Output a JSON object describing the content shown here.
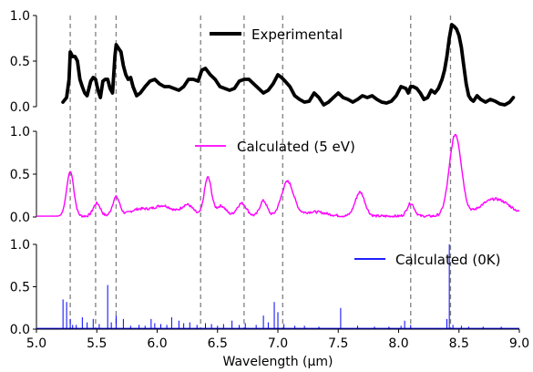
{
  "xaxis": {
    "label": "Wavelength (μm)",
    "ticks": [
      "5.0",
      "5.5",
      "6.0",
      "6.5",
      "7.0",
      "7.5",
      "8.0",
      "8.5",
      "9.0"
    ],
    "range": [
      5.0,
      9.0
    ]
  },
  "colors": {
    "experimental": "#000000",
    "calc5ev": "#ff00ff",
    "calc0k": "#0000ff",
    "vlines": "#808080"
  },
  "chart_data": [
    {
      "type": "line",
      "panel": "top",
      "ylim": [
        0,
        1.0
      ],
      "yticks": [
        "0.0",
        "0.5",
        "1.0"
      ],
      "series": [
        {
          "name": "Experimental",
          "x": [
            5.22,
            5.25,
            5.27,
            5.28,
            5.3,
            5.32,
            5.34,
            5.36,
            5.38,
            5.4,
            5.42,
            5.45,
            5.47,
            5.49,
            5.51,
            5.53,
            5.55,
            5.57,
            5.59,
            5.61,
            5.63,
            5.65,
            5.66,
            5.68,
            5.7,
            5.72,
            5.74,
            5.76,
            5.78,
            5.8,
            5.83,
            5.86,
            5.9,
            5.94,
            5.98,
            6.02,
            6.06,
            6.1,
            6.14,
            6.18,
            6.22,
            6.26,
            6.3,
            6.34,
            6.37,
            6.4,
            6.44,
            6.48,
            6.52,
            6.56,
            6.6,
            6.64,
            6.68,
            6.72,
            6.76,
            6.8,
            6.84,
            6.88,
            6.92,
            6.96,
            7.0,
            7.03,
            7.06,
            7.1,
            7.14,
            7.18,
            7.22,
            7.26,
            7.3,
            7.34,
            7.38,
            7.42,
            7.46,
            7.5,
            7.54,
            7.58,
            7.62,
            7.66,
            7.7,
            7.74,
            7.78,
            7.82,
            7.86,
            7.9,
            7.94,
            7.98,
            8.02,
            8.06,
            8.08,
            8.1,
            8.12,
            8.15,
            8.18,
            8.21,
            8.24,
            8.27,
            8.3,
            8.33,
            8.36,
            8.38,
            8.4,
            8.42,
            8.44,
            8.46,
            8.48,
            8.5,
            8.52,
            8.54,
            8.56,
            8.58,
            8.6,
            8.62,
            8.65,
            8.68,
            8.72,
            8.76,
            8.8,
            8.84,
            8.88,
            8.92,
            8.95
          ],
          "values": [
            0.05,
            0.1,
            0.3,
            0.6,
            0.55,
            0.55,
            0.5,
            0.3,
            0.22,
            0.15,
            0.12,
            0.28,
            0.32,
            0.3,
            0.18,
            0.1,
            0.28,
            0.3,
            0.3,
            0.2,
            0.15,
            0.55,
            0.68,
            0.64,
            0.6,
            0.45,
            0.35,
            0.3,
            0.32,
            0.22,
            0.12,
            0.15,
            0.22,
            0.28,
            0.3,
            0.25,
            0.22,
            0.22,
            0.2,
            0.18,
            0.22,
            0.3,
            0.3,
            0.28,
            0.4,
            0.42,
            0.35,
            0.3,
            0.22,
            0.2,
            0.18,
            0.2,
            0.28,
            0.3,
            0.3,
            0.25,
            0.2,
            0.15,
            0.18,
            0.25,
            0.35,
            0.32,
            0.28,
            0.22,
            0.12,
            0.08,
            0.05,
            0.06,
            0.15,
            0.1,
            0.02,
            0.05,
            0.1,
            0.15,
            0.1,
            0.08,
            0.05,
            0.08,
            0.12,
            0.1,
            0.12,
            0.08,
            0.05,
            0.04,
            0.06,
            0.12,
            0.22,
            0.2,
            0.15,
            0.22,
            0.22,
            0.2,
            0.15,
            0.08,
            0.1,
            0.18,
            0.15,
            0.2,
            0.3,
            0.4,
            0.55,
            0.75,
            0.9,
            0.88,
            0.85,
            0.78,
            0.65,
            0.45,
            0.25,
            0.12,
            0.08,
            0.06,
            0.12,
            0.08,
            0.05,
            0.08,
            0.06,
            0.03,
            0.02,
            0.05,
            0.1
          ]
        }
      ],
      "legend": "top-center"
    },
    {
      "type": "line",
      "panel": "middle",
      "ylim": [
        0,
        1.0
      ],
      "yticks": [
        "0.0",
        "0.5",
        "1.0"
      ],
      "series": [
        {
          "name": "Calculated (5 eV)",
          "peaks": [
            [
              5.28,
              0.52,
              0.03
            ],
            [
              5.5,
              0.15,
              0.03
            ],
            [
              5.66,
              0.22,
              0.03
            ],
            [
              5.85,
              0.08,
              0.08
            ],
            [
              6.05,
              0.12,
              0.08
            ],
            [
              6.25,
              0.13,
              0.05
            ],
            [
              6.42,
              0.45,
              0.03
            ],
            [
              6.53,
              0.12,
              0.04
            ],
            [
              6.7,
              0.15,
              0.04
            ],
            [
              6.88,
              0.18,
              0.03
            ],
            [
              7.08,
              0.4,
              0.05
            ],
            [
              7.3,
              0.05,
              0.1
            ],
            [
              7.68,
              0.28,
              0.04
            ],
            [
              8.1,
              0.15,
              0.03
            ],
            [
              8.47,
              0.95,
              0.05
            ],
            [
              8.8,
              0.2,
              0.12
            ]
          ],
          "baseline": 0.01
        }
      ],
      "legend": "top-center"
    },
    {
      "type": "bar",
      "panel": "bottom",
      "ylim": [
        0,
        1.0
      ],
      "yticks": [
        "0.0",
        "0.5",
        "1.0"
      ],
      "series": [
        {
          "name": "Calculated (0K)",
          "sticks": [
            [
              5.22,
              0.35
            ],
            [
              5.25,
              0.32
            ],
            [
              5.28,
              0.12
            ],
            [
              5.3,
              0.05
            ],
            [
              5.33,
              0.05
            ],
            [
              5.38,
              0.14
            ],
            [
              5.42,
              0.08
            ],
            [
              5.47,
              0.12
            ],
            [
              5.52,
              0.06
            ],
            [
              5.59,
              0.52
            ],
            [
              5.62,
              0.08
            ],
            [
              5.66,
              0.16
            ],
            [
              5.72,
              0.12
            ],
            [
              5.78,
              0.04
            ],
            [
              5.85,
              0.05
            ],
            [
              5.9,
              0.04
            ],
            [
              5.95,
              0.12
            ],
            [
              5.98,
              0.07
            ],
            [
              6.03,
              0.06
            ],
            [
              6.08,
              0.05
            ],
            [
              6.12,
              0.14
            ],
            [
              6.18,
              0.1
            ],
            [
              6.22,
              0.07
            ],
            [
              6.27,
              0.08
            ],
            [
              6.33,
              0.05
            ],
            [
              6.4,
              0.07
            ],
            [
              6.45,
              0.06
            ],
            [
              6.5,
              0.04
            ],
            [
              6.55,
              0.06
            ],
            [
              6.62,
              0.1
            ],
            [
              6.68,
              0.05
            ],
            [
              6.73,
              0.07
            ],
            [
              6.82,
              0.05
            ],
            [
              6.88,
              0.16
            ],
            [
              6.92,
              0.08
            ],
            [
              6.97,
              0.32
            ],
            [
              7.0,
              0.2
            ],
            [
              7.05,
              0.06
            ],
            [
              7.14,
              0.04
            ],
            [
              7.22,
              0.04
            ],
            [
              7.34,
              0.03
            ],
            [
              7.52,
              0.25
            ],
            [
              7.66,
              0.04
            ],
            [
              7.8,
              0.03
            ],
            [
              7.92,
              0.03
            ],
            [
              8.02,
              0.04
            ],
            [
              8.05,
              0.1
            ],
            [
              8.1,
              0.05
            ],
            [
              8.4,
              0.12
            ],
            [
              8.42,
              1.0
            ],
            [
              8.45,
              0.05
            ],
            [
              8.52,
              0.04
            ],
            [
              8.58,
              0.03
            ],
            [
              8.7,
              0.03
            ],
            [
              8.85,
              0.03
            ]
          ],
          "baseline": 0.01
        }
      ],
      "legend": "top-right"
    }
  ],
  "vlines_x": [
    5.28,
    5.49,
    5.66,
    6.36,
    6.72,
    7.04,
    8.1,
    8.43
  ]
}
